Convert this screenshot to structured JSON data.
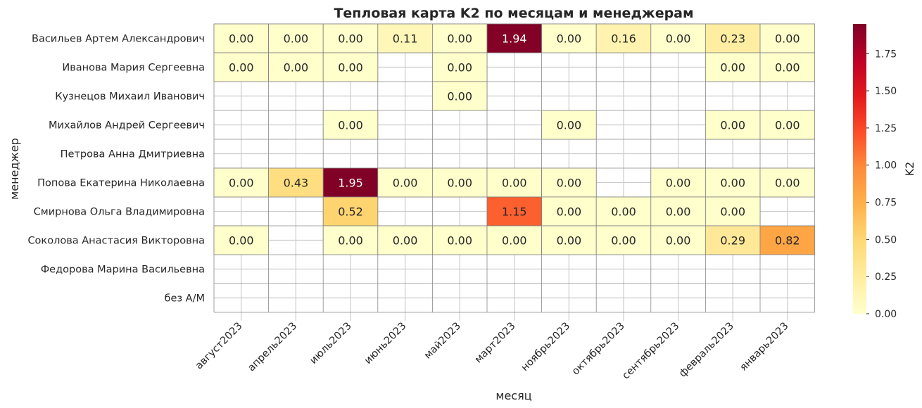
{
  "chart_data": {
    "type": "heatmap",
    "title": "Тепловая карта K2 по месяцам и менеджерам",
    "xlabel": "месяц",
    "ylabel": "менеджер",
    "colorbar_label": "K2",
    "colorbar_ticks": [
      "0.00",
      "0.25",
      "0.50",
      "0.75",
      "1.00",
      "1.25",
      "1.50",
      "1.75"
    ],
    "vmin": 0,
    "vmax": 1.95,
    "colormap": "YlOrRd",
    "colormap_stops": [
      "#ffffcc",
      "#ffeda0",
      "#fed976",
      "#feb24c",
      "#fd8d3c",
      "#fc4e2a",
      "#e31a1c",
      "#bd0026",
      "#800026"
    ],
    "x": [
      "август2023",
      "апрель2023",
      "июль2023",
      "июнь2023",
      "май2023",
      "март2023",
      "ноябрь2023",
      "октябрь2023",
      "сентябрь2023",
      "февраль2023",
      "январь2023"
    ],
    "y": [
      "Васильев Артем Александрович",
      "Иванова Мария Сергеевна",
      "Кузнецов Михаил Иванович",
      "Михайлов Андрей Сергеевич",
      "Петрова Анна Дмитриевна",
      "Попова Екатерина Николаевна",
      "Смирнова Ольга Владимировна",
      "Соколова Анастасия Викторовна",
      "Федорова Марина Васильевна",
      "без А/М"
    ],
    "values": [
      [
        0.0,
        0.0,
        0.0,
        0.11,
        0.0,
        1.94,
        0.0,
        0.16,
        0.0,
        0.23,
        0.0
      ],
      [
        0.0,
        0.0,
        0.0,
        null,
        0.0,
        null,
        null,
        null,
        null,
        0.0,
        0.0
      ],
      [
        null,
        null,
        null,
        null,
        0.0,
        null,
        null,
        null,
        null,
        null,
        null
      ],
      [
        null,
        null,
        0.0,
        null,
        null,
        null,
        0.0,
        null,
        null,
        0.0,
        0.0
      ],
      [
        null,
        null,
        null,
        null,
        null,
        null,
        null,
        null,
        null,
        null,
        null
      ],
      [
        0.0,
        0.43,
        1.95,
        0.0,
        0.0,
        0.0,
        0.0,
        null,
        0.0,
        0.0,
        0.0
      ],
      [
        null,
        null,
        0.52,
        null,
        null,
        1.15,
        0.0,
        0.0,
        0.0,
        0.0,
        null
      ],
      [
        0.0,
        null,
        0.0,
        0.0,
        0.0,
        0.0,
        0.0,
        0.0,
        0.0,
        0.29,
        0.82
      ],
      [
        null,
        null,
        null,
        null,
        null,
        null,
        null,
        null,
        null,
        null,
        null
      ],
      [
        null,
        null,
        null,
        null,
        null,
        null,
        null,
        null,
        null,
        null,
        null
      ]
    ],
    "grid": true
  }
}
